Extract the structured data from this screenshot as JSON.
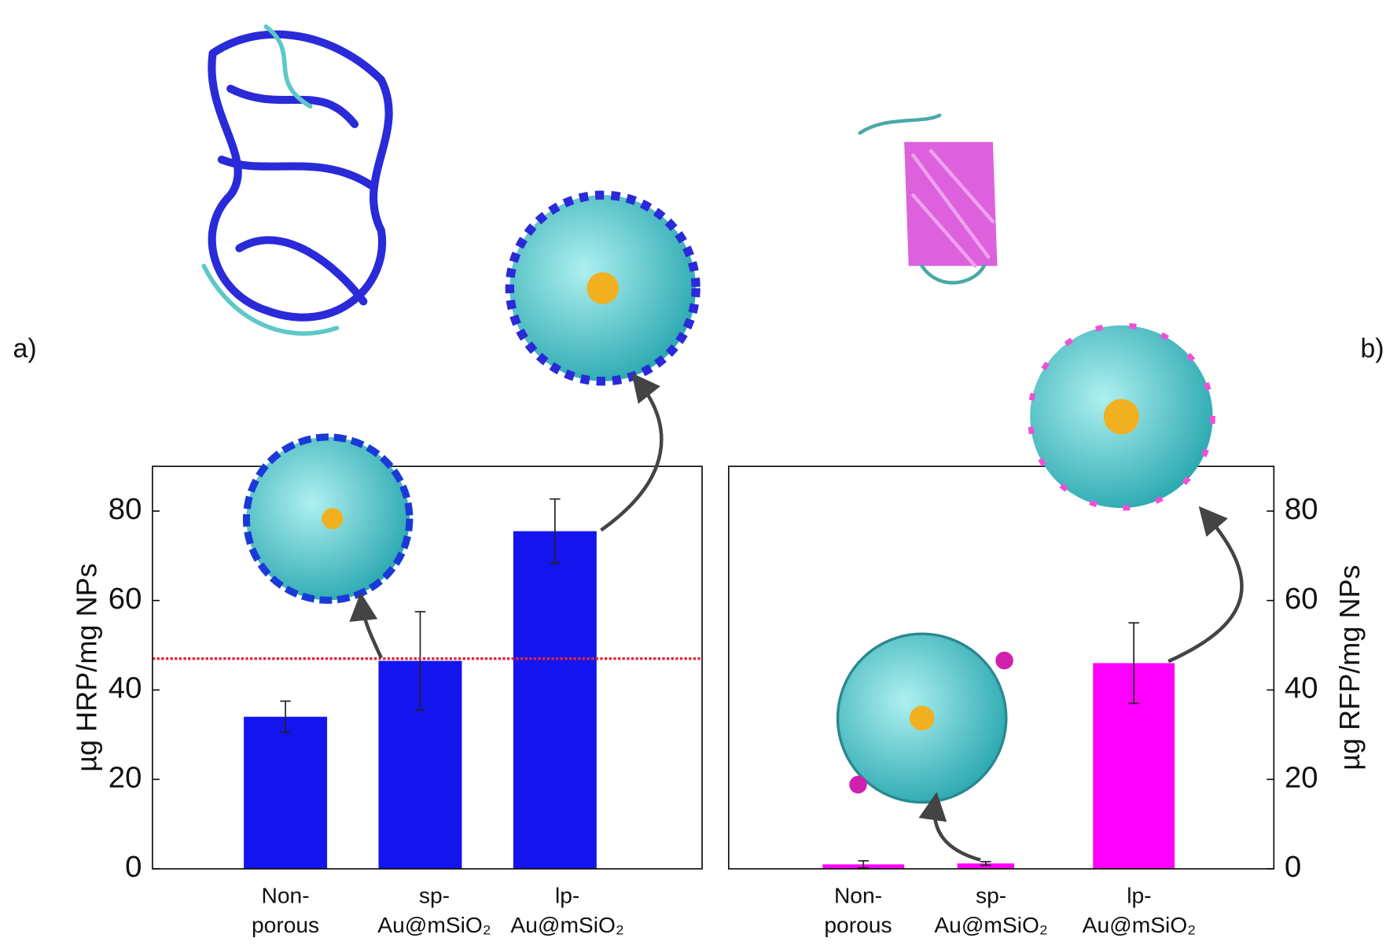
{
  "chart_data": [
    {
      "type": "bar",
      "panel_label": "a)",
      "ylabel": "µg HRP/mg NPs",
      "categories": [
        [
          "Non-",
          "porous"
        ],
        [
          "sp-",
          "Au@mSiO₂"
        ],
        [
          "lp-",
          "Au@mSiO₂"
        ]
      ],
      "values": [
        34,
        46.5,
        75.5
      ],
      "errors": [
        3.5,
        11,
        7.2
      ],
      "color": "#1414ee",
      "ylim": [
        0,
        90
      ],
      "yticks": [
        0,
        20,
        40,
        60,
        80
      ],
      "y_axis_side": "left",
      "reference_line": {
        "value": 47,
        "color": "#e0283c"
      }
    },
    {
      "type": "bar",
      "panel_label": "b)",
      "ylabel": "µg RFP/mg NPs",
      "categories": [
        [
          "Non-",
          "porous"
        ],
        [
          "sp-",
          "Au@mSiO₂"
        ],
        [
          "lp-",
          "Au@mSiO₂"
        ]
      ],
      "values": [
        1,
        1.2,
        46
      ],
      "errors": [
        0.8,
        0.4,
        9
      ],
      "color": "#ff00ff",
      "ylim": [
        0,
        90
      ],
      "yticks": [
        0,
        20,
        40,
        60,
        80
      ],
      "y_axis_side": "right"
    }
  ]
}
